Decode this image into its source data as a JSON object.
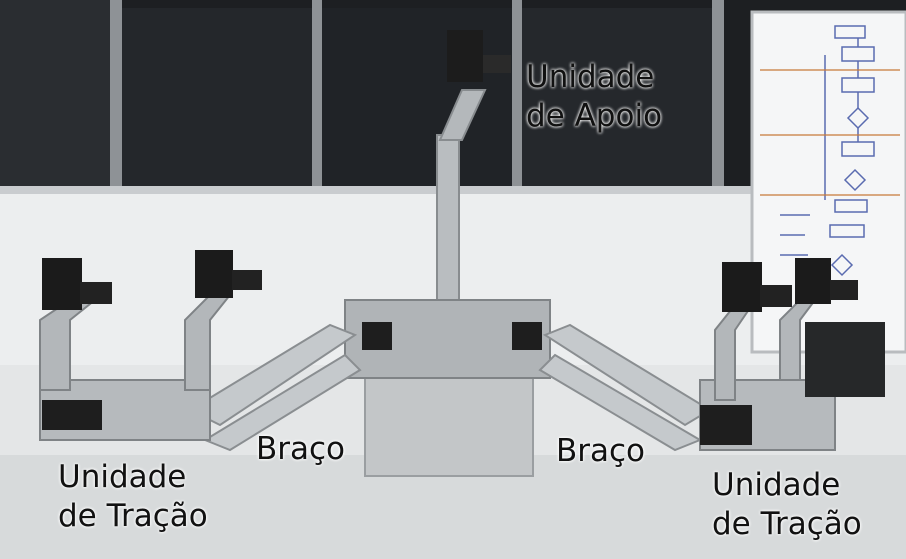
{
  "labels": {
    "support_unit": {
      "line1": "Unidade",
      "line2": "de Apoio"
    },
    "traction_unit_left": {
      "line1": "Unidade",
      "line2": "de Tração"
    },
    "traction_unit_right": {
      "line1": "Unidade",
      "line2": "de Tração"
    },
    "arm_left": "Braço",
    "arm_right": "Braço"
  }
}
